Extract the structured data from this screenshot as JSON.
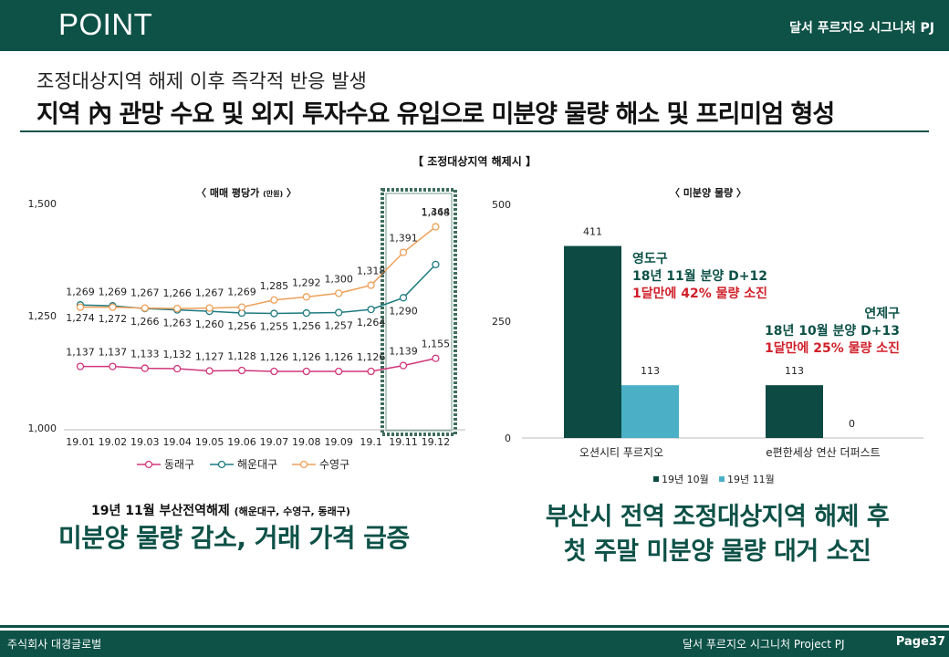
{
  "header": {
    "title": "POINT",
    "project": "달서 푸르지오 시그니처 PJ"
  },
  "subtitle": "조정대상지역 해제 이후 즉각적 반응 발생",
  "headline": "지역 內 관망 수요 및 외지 투자수요 유입으로 미분양 물량 해소 및 프리미엄 형성",
  "center_title": "【 조정대상지역 해제시 】",
  "chart_data": [
    {
      "type": "line",
      "title": "〈 매매 평당가",
      "unit": "(만원)",
      "title_close": "〉",
      "categories": [
        "19.01",
        "19.02",
        "19.03",
        "19.04",
        "19.05",
        "19.06",
        "19.07",
        "19.08",
        "19.09",
        "19.1",
        "19.11",
        "19.12"
      ],
      "ylim": [
        1000,
        1500
      ],
      "yticks": [
        1000,
        1250,
        1500
      ],
      "ytick_labels": [
        "1,000",
        "1,250",
        "1,500"
      ],
      "grid": false,
      "legend_position": "bottom",
      "highlight_categories": [
        "19.11",
        "19.12"
      ],
      "series": [
        {
          "name": "동래구",
          "color": "#d0367a",
          "values": [
            1137,
            1137,
            1133,
            1132,
            1127,
            1128,
            1126,
            1126,
            1126,
            1126,
            1139,
            1155
          ],
          "labels": [
            "1,137",
            "1,137",
            "1,133",
            "1,132",
            "1,127",
            "1,128",
            "1,126",
            "1,126",
            "1,126",
            "1,126",
            "1,139",
            "1,155"
          ]
        },
        {
          "name": "해운대구",
          "color": "#1e7a80",
          "values": [
            1274,
            1272,
            1266,
            1263,
            1260,
            1256,
            1255,
            1256,
            1257,
            1264,
            1290,
            1364
          ],
          "labels": [
            "1,274",
            "1,272",
            "1,266",
            "1,263",
            "1,260",
            "1,256",
            "1,255",
            "1,256",
            "1,257",
            "1,264",
            "1,290",
            "1,364"
          ]
        },
        {
          "name": "수영구",
          "color": "#eea05a",
          "values": [
            1269,
            1269,
            1267,
            1266,
            1267,
            1269,
            1285,
            1292,
            1300,
            1318,
            1391,
            1448
          ],
          "labels": [
            "1,269",
            "1,269",
            "1,267",
            "1,266",
            "1,267",
            "1,269",
            "1,285",
            "1,292",
            "1,300",
            "1,318",
            "1,391",
            "1,448"
          ]
        }
      ]
    },
    {
      "type": "bar",
      "title": "〈 미분양 물량 〉",
      "categories": [
        "오션시티 푸르지오",
        "e편한세상 연산 더퍼스트"
      ],
      "ylim": [
        0,
        500
      ],
      "yticks": [
        0,
        250,
        500
      ],
      "ytick_labels": [
        "0",
        "250",
        "500"
      ],
      "grid": false,
      "legend_position": "bottom",
      "series": [
        {
          "name": "19년 10월",
          "color": "#0d4a44",
          "values": [
            411,
            113
          ],
          "labels": [
            "411",
            "113"
          ]
        },
        {
          "name": "19년 11월",
          "color": "#4bb0c6",
          "values": [
            113,
            0
          ],
          "labels": [
            "113",
            "0"
          ]
        }
      ],
      "annotations": [
        {
          "lines": [
            "영도구",
            "18년 11월 분양 D+12",
            "1달만에 42% 물량 소진"
          ],
          "colors": [
            "#0d5147",
            "#0d5147",
            "#d0202a"
          ],
          "align": "left"
        },
        {
          "lines": [
            "연제구",
            "18년 10월 분양 D+13",
            "1달만에 25% 물량 소진"
          ],
          "colors": [
            "#0d5147",
            "#0d5147",
            "#d0202a"
          ],
          "align": "right"
        }
      ]
    }
  ],
  "captions": {
    "left_small": "19년 11월 부산전역해제",
    "left_small_note": "(해운대구, 수영구, 동래구)",
    "left_big": "미분양 물량 감소, 거래 가격 급증",
    "right_line1": "부산시 전역 조정대상지역 해제 후",
    "right_line2": "첫 주말 미분양 물량 대거 소진"
  },
  "footer": {
    "company": "주식회사 대경글로벌",
    "project": "달서 푸르지오 시그니처 Project PJ",
    "page": "Page37"
  }
}
